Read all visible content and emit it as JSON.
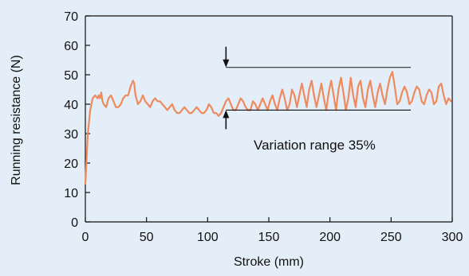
{
  "chart_data": {
    "type": "line",
    "xlabel": "Stroke (mm)",
    "ylabel": "Running resistance (N)",
    "xlim": [
      0,
      300
    ],
    "ylim": [
      0,
      70
    ],
    "xticks": [
      0,
      50,
      100,
      150,
      200,
      250,
      300
    ],
    "yticks": [
      0,
      10,
      20,
      30,
      40,
      50,
      60,
      70
    ],
    "grid": false,
    "line_color": "#ee8a5e",
    "background": "#e4eef8",
    "series": [
      {
        "x": [
          0,
          2,
          4,
          6,
          8,
          10,
          11,
          12,
          13,
          14,
          15,
          17,
          19,
          21,
          23,
          25,
          27,
          29,
          31,
          33,
          35,
          37,
          39,
          40,
          41,
          43,
          45,
          47,
          49,
          51,
          53,
          55,
          57,
          59,
          61,
          63,
          65,
          67,
          69,
          71,
          73,
          75,
          77,
          79,
          81,
          83,
          85,
          87,
          89,
          91,
          93,
          95,
          97,
          99,
          101,
          103,
          105,
          107,
          109,
          111,
          113,
          115,
          117,
          119,
          121,
          123,
          125,
          127,
          129,
          131,
          133,
          135,
          137,
          139,
          141,
          143,
          145,
          147,
          149,
          151,
          153,
          155,
          157,
          159,
          161,
          163,
          165,
          167,
          169,
          171,
          173,
          175,
          177,
          179,
          181,
          183,
          185,
          187,
          189,
          191,
          193,
          195,
          197,
          199,
          201,
          203,
          205,
          207,
          209,
          211,
          213,
          215,
          217,
          219,
          221,
          223,
          225,
          227,
          229,
          231,
          233,
          235,
          237,
          239,
          241,
          243,
          245,
          247,
          249,
          251,
          253,
          255,
          257,
          259,
          261,
          263,
          265,
          267,
          269,
          271,
          273,
          275,
          277,
          279,
          281,
          283,
          285,
          287,
          289,
          291,
          293,
          295,
          297,
          299
        ],
        "values": [
          13,
          30,
          38,
          42,
          43,
          42,
          43,
          42,
          44,
          41,
          40,
          39,
          42,
          43,
          41,
          39,
          39,
          40,
          42,
          43,
          43,
          46,
          48,
          47,
          43,
          40,
          41,
          43,
          41,
          40,
          39,
          41,
          42,
          41,
          41,
          40,
          39,
          38,
          39,
          40,
          38,
          37,
          37,
          38,
          39,
          38,
          37,
          37,
          38,
          39,
          38,
          37,
          37,
          38,
          40,
          39,
          37,
          37,
          36,
          37,
          39,
          41,
          42,
          40,
          38,
          38,
          40,
          42,
          41,
          39,
          38,
          38,
          41,
          40,
          38,
          40,
          42,
          40,
          38,
          41,
          43,
          40,
          38,
          42,
          45,
          42,
          38,
          40,
          45,
          43,
          39,
          43,
          47,
          43,
          39,
          45,
          48,
          43,
          39,
          43,
          47,
          42,
          38,
          44,
          48,
          43,
          38,
          45,
          49,
          44,
          38,
          42,
          49,
          43,
          39,
          46,
          48,
          42,
          39,
          45,
          48,
          43,
          39,
          44,
          47,
          43,
          40,
          45,
          49,
          51,
          46,
          40,
          41,
          44,
          46,
          44,
          40,
          41,
          44,
          46,
          45,
          41,
          40,
          43,
          45,
          44,
          40,
          41,
          46,
          47,
          43,
          40,
          42,
          41
        ]
      }
    ],
    "annotation": {
      "text": "Variation range 35%",
      "upper": 52.5,
      "lower": 38,
      "x": 115
    }
  }
}
